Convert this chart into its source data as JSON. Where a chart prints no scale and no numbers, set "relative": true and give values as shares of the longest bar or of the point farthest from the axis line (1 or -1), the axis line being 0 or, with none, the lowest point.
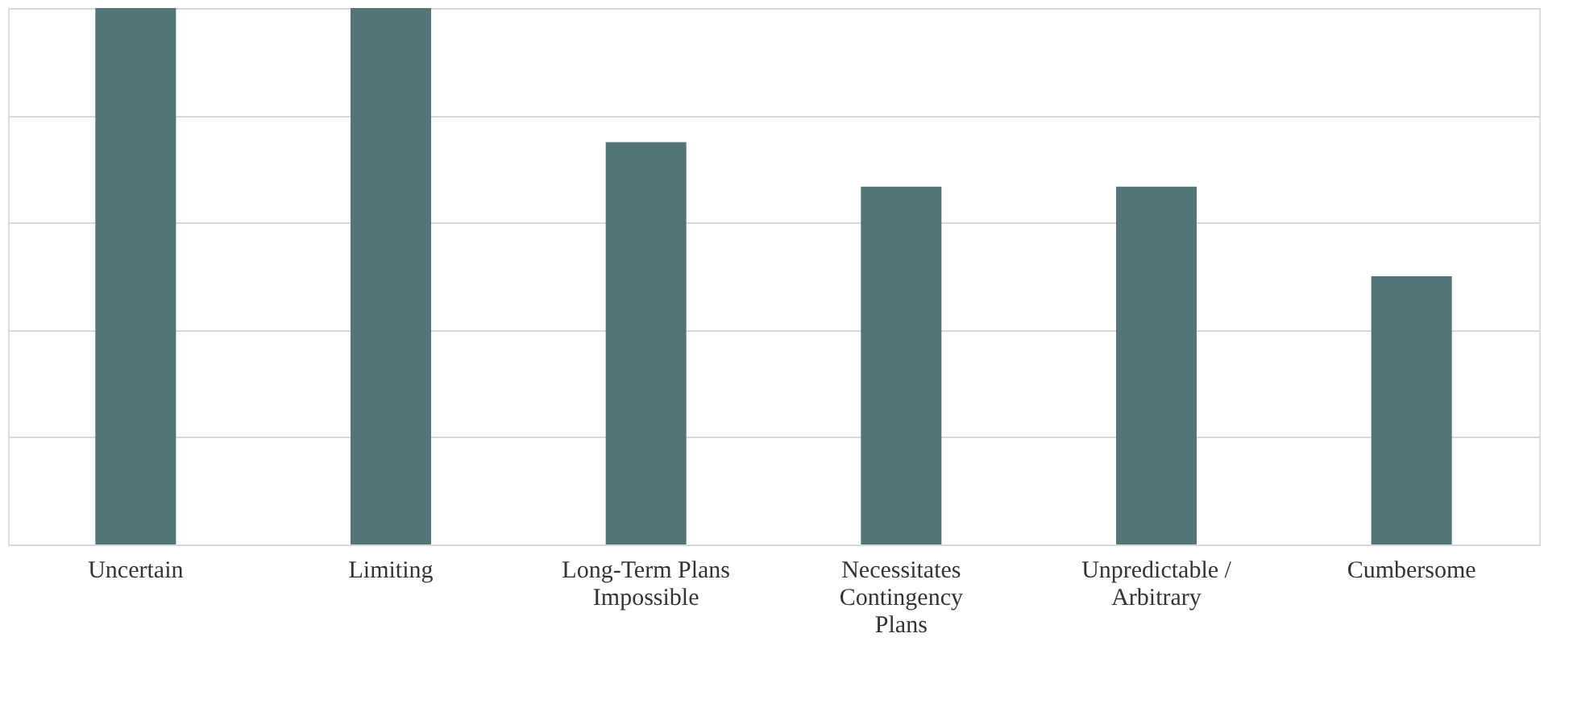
{
  "chart_data": {
    "type": "bar",
    "relative": true,
    "grid": true,
    "categories": [
      "Uncertain",
      "Limiting",
      "Long-Term Plans Impossible",
      "Necessitates Contingency Plans",
      "Unpredictable / Arbitrary",
      "Cumbersome"
    ],
    "values": [
      1,
      1,
      0.75,
      0.667,
      0.667,
      0.5
    ],
    "color": "#537577"
  }
}
